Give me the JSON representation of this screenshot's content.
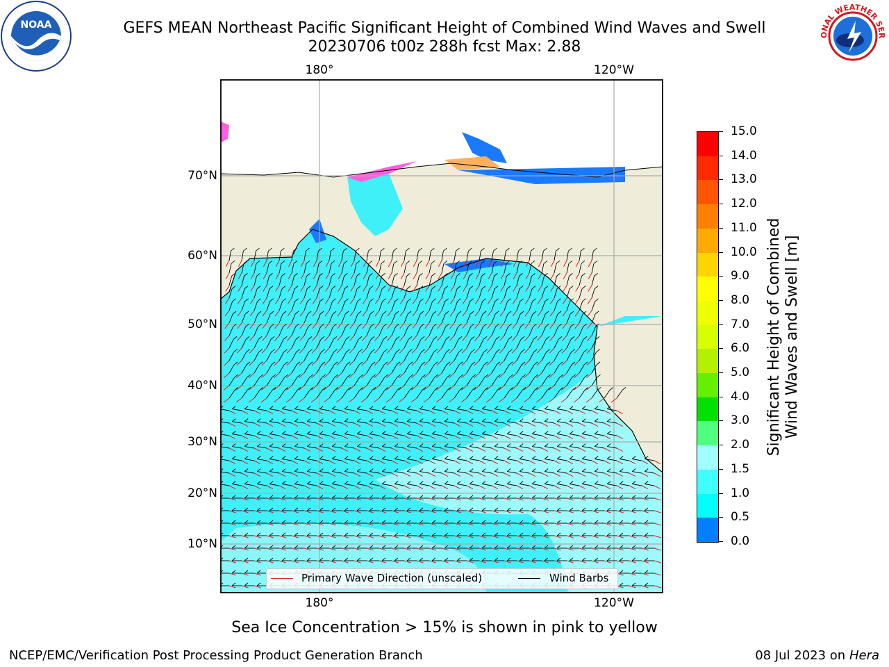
{
  "title": {
    "line1": "GEFS MEAN Northeast Pacific Significant Height of Combined Wind Waves and Swell",
    "line2": "20230706 t00z 288h fcst   Max: 2.88"
  },
  "logos": {
    "left": "NOAA",
    "right": "NATIONAL WEATHER SERVICE"
  },
  "axes": {
    "lon_ticks_top": [
      "180°",
      "120°W"
    ],
    "lon_ticks_bottom": [
      "180°",
      "120°W"
    ],
    "lat_ticks": [
      "70°N",
      "60°N",
      "50°N",
      "40°N",
      "30°N",
      "20°N",
      "10°N"
    ]
  },
  "legend": {
    "wave_label": "Primary Wave Direction (unscaled)",
    "wind_label": "Wind Barbs",
    "wave_color": "#e41a1c",
    "wind_color": "#000000"
  },
  "colorbar": {
    "title_line1": "Significant Height of Combined",
    "title_line2": "Wind Waves and Swell [m]",
    "tick_labels": [
      "15.0",
      "14.0",
      "13.0",
      "12.0",
      "11.0",
      "10.0",
      "9.0",
      "8.0",
      "7.0",
      "6.0",
      "5.0",
      "4.0",
      "3.0",
      "2.0",
      "1.5",
      "1.0",
      "0.5",
      "0.0"
    ],
    "colors": [
      "#ff0000",
      "#ff2a00",
      "#ff5500",
      "#ff8000",
      "#ffaa00",
      "#ffd500",
      "#ffff00",
      "#eeff00",
      "#d8ff00",
      "#b4f000",
      "#64f000",
      "#00e100",
      "#50ff80",
      "#a0ffff",
      "#40ffff",
      "#00ffff",
      "#0080ff",
      "#0000ff"
    ]
  },
  "colors": {
    "land": "#efedd9",
    "water_main": "#40f0f8",
    "water_light": "#a8fafa",
    "shelf_blue": "#1a7aff"
  },
  "note": "Sea Ice Concentration > 15% is shown in pink to yellow",
  "footer": {
    "left": "NCEP/EMC/Verification Post Processing Product Generation Branch",
    "right_date": "08 Jul 2023 on ",
    "right_host": "Hera"
  }
}
